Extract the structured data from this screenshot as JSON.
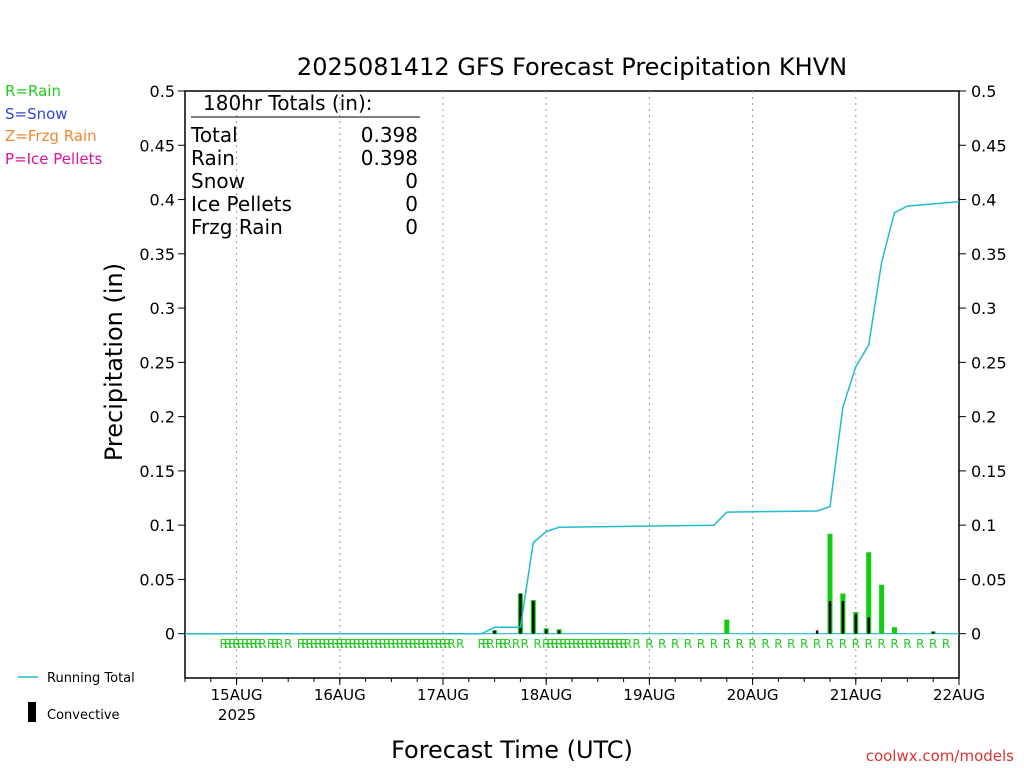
{
  "chart_data": {
    "type": "bar",
    "title": "2025081412 GFS Forecast Precipitation KHVN",
    "xlabel": "Forecast Time (UTC)",
    "ylabel": "Precipitation (in)",
    "ylim": [
      0,
      0.5
    ],
    "xlim": [
      "2025-08-14 12",
      "2025-08-22 00"
    ],
    "y_ticks": [
      "0",
      "0.05",
      "0.1",
      "0.15",
      "0.2",
      "0.25",
      "0.3",
      "0.35",
      "0.4",
      "0.45",
      "0.5"
    ],
    "x_ticks": [
      {
        "t": "2025-08-15 00",
        "label": "15AUG"
      },
      {
        "t": "2025-08-16 00",
        "label": "16AUG"
      },
      {
        "t": "2025-08-17 00",
        "label": "17AUG"
      },
      {
        "t": "2025-08-18 00",
        "label": "18AUG"
      },
      {
        "t": "2025-08-19 00",
        "label": "19AUG"
      },
      {
        "t": "2025-08-20 00",
        "label": "20AUG"
      },
      {
        "t": "2025-08-21 00",
        "label": "21AUG"
      },
      {
        "t": "2025-08-22 00",
        "label": "22AUG"
      }
    ],
    "year_label": "2025",
    "grid": "vertical dotted at day boundaries",
    "legend_placement": "top-left",
    "type_legend": [
      {
        "label": "R=Rain",
        "color": "#22cc22"
      },
      {
        "label": "S=Snow",
        "color": "#3344dd"
      },
      {
        "label": "Z=Frzg Rain",
        "color": "#ee8833"
      },
      {
        "label": "P=Ice Pellets",
        "color": "#dd1199"
      }
    ],
    "series_legend": [
      {
        "label": "Running Total",
        "color": "#22bbcc"
      },
      {
        "label": "Convective",
        "color": "#000000"
      }
    ],
    "totals": {
      "header": "180hr Totals (in):",
      "rows": [
        {
          "label": "Total",
          "value": "0.398"
        },
        {
          "label": "Rain",
          "value": "0.398"
        },
        {
          "label": "Snow",
          "value": "0"
        },
        {
          "label": "Ice Pellets",
          "value": "0"
        },
        {
          "label": "Frzg Rain",
          "value": "0"
        }
      ]
    },
    "precip_bars": [
      {
        "t": "2025-08-17 12",
        "value": 0.003
      },
      {
        "t": "2025-08-17 18",
        "value": 0.037
      },
      {
        "t": "2025-08-17 21",
        "value": 0.031
      },
      {
        "t": "2025-08-18 00",
        "value": 0.005
      },
      {
        "t": "2025-08-18 03",
        "value": 0.004
      },
      {
        "t": "2025-08-19 18",
        "value": 0.013
      },
      {
        "t": "2025-08-20 18",
        "value": 0.092
      },
      {
        "t": "2025-08-20 21",
        "value": 0.037
      },
      {
        "t": "2025-08-21 00",
        "value": 0.02
      },
      {
        "t": "2025-08-21 03",
        "value": 0.075
      },
      {
        "t": "2025-08-21 06",
        "value": 0.045
      },
      {
        "t": "2025-08-21 09",
        "value": 0.006
      },
      {
        "t": "2025-08-21 18",
        "value": 0.002
      }
    ],
    "convective_bars": [
      {
        "t": "2025-08-17 12",
        "value": 0.003
      },
      {
        "t": "2025-08-17 18",
        "value": 0.037
      },
      {
        "t": "2025-08-17 21",
        "value": 0.03
      },
      {
        "t": "2025-08-18 00",
        "value": 0.004
      },
      {
        "t": "2025-08-18 03",
        "value": 0.003
      },
      {
        "t": "2025-08-20 15",
        "value": 0.003
      },
      {
        "t": "2025-08-20 18",
        "value": 0.03
      },
      {
        "t": "2025-08-20 21",
        "value": 0.03
      },
      {
        "t": "2025-08-21 00",
        "value": 0.018
      },
      {
        "t": "2025-08-21 03",
        "value": 0.015
      },
      {
        "t": "2025-08-21 18",
        "value": 0.002
      }
    ],
    "running_total": [
      {
        "t": "2025-08-14 12",
        "value": 0
      },
      {
        "t": "2025-08-17 09",
        "value": 0
      },
      {
        "t": "2025-08-17 12",
        "value": 0.006
      },
      {
        "t": "2025-08-17 18",
        "value": 0.006
      },
      {
        "t": "2025-08-17 21",
        "value": 0.084
      },
      {
        "t": "2025-08-18 00",
        "value": 0.094
      },
      {
        "t": "2025-08-18 03",
        "value": 0.098
      },
      {
        "t": "2025-08-19 15",
        "value": 0.1
      },
      {
        "t": "2025-08-19 18",
        "value": 0.112
      },
      {
        "t": "2025-08-20 15",
        "value": 0.113
      },
      {
        "t": "2025-08-20 18",
        "value": 0.117
      },
      {
        "t": "2025-08-20 21",
        "value": 0.209
      },
      {
        "t": "2025-08-21 00",
        "value": 0.246
      },
      {
        "t": "2025-08-21 03",
        "value": 0.266
      },
      {
        "t": "2025-08-21 06",
        "value": 0.342
      },
      {
        "t": "2025-08-21 09",
        "value": 0.388
      },
      {
        "t": "2025-08-21 12",
        "value": 0.394
      },
      {
        "t": "2025-08-21 18",
        "value": 0.396
      },
      {
        "t": "2025-08-22 00",
        "value": 0.398
      }
    ],
    "type_markers": {
      "symbol": "R",
      "color": "#22cc22",
      "times": [
        "2025-08-14 21",
        "2025-08-14 22",
        "2025-08-14 23",
        "2025-08-15 00",
        "2025-08-15 01",
        "2025-08-15 02",
        "2025-08-15 03",
        "2025-08-15 04",
        "2025-08-15 05",
        "2025-08-15 06",
        "2025-08-15 08",
        "2025-08-15 09",
        "2025-08-15 10",
        "2025-08-15 12",
        "2025-08-15 15",
        "2025-08-15 16",
        "2025-08-15 17",
        "2025-08-15 18",
        "2025-08-15 19",
        "2025-08-15 20",
        "2025-08-15 21",
        "2025-08-15 22",
        "2025-08-15 23",
        "2025-08-16 00",
        "2025-08-16 01",
        "2025-08-16 02",
        "2025-08-16 03",
        "2025-08-16 04",
        "2025-08-16 05",
        "2025-08-16 06",
        "2025-08-16 07",
        "2025-08-16 08",
        "2025-08-16 09",
        "2025-08-16 10",
        "2025-08-16 11",
        "2025-08-16 12",
        "2025-08-16 13",
        "2025-08-16 14",
        "2025-08-16 15",
        "2025-08-16 16",
        "2025-08-16 17",
        "2025-08-16 18",
        "2025-08-16 19",
        "2025-08-16 20",
        "2025-08-16 21",
        "2025-08-16 22",
        "2025-08-16 23",
        "2025-08-17 00",
        "2025-08-17 01",
        "2025-08-17 02",
        "2025-08-17 04",
        "2025-08-17 09",
        "2025-08-17 10",
        "2025-08-17 11",
        "2025-08-17 13",
        "2025-08-17 14",
        "2025-08-17 15",
        "2025-08-17 17",
        "2025-08-17 19",
        "2025-08-17 22",
        "2025-08-18 00",
        "2025-08-18 01",
        "2025-08-18 02",
        "2025-08-18 03",
        "2025-08-18 04",
        "2025-08-18 05",
        "2025-08-18 06",
        "2025-08-18 07",
        "2025-08-18 08",
        "2025-08-18 09",
        "2025-08-18 10",
        "2025-08-18 11",
        "2025-08-18 12",
        "2025-08-18 13",
        "2025-08-18 14",
        "2025-08-18 15",
        "2025-08-18 16",
        "2025-08-18 17",
        "2025-08-18 18",
        "2025-08-18 19",
        "2025-08-18 21",
        "2025-08-19 00",
        "2025-08-19 03",
        "2025-08-19 06",
        "2025-08-19 09",
        "2025-08-19 12",
        "2025-08-19 15",
        "2025-08-19 18",
        "2025-08-19 21",
        "2025-08-20 00",
        "2025-08-20 03",
        "2025-08-20 06",
        "2025-08-20 09",
        "2025-08-20 12",
        "2025-08-20 15",
        "2025-08-20 18",
        "2025-08-20 21",
        "2025-08-21 00",
        "2025-08-21 03",
        "2025-08-21 06",
        "2025-08-21 09",
        "2025-08-21 12",
        "2025-08-21 15",
        "2025-08-21 18",
        "2025-08-21 21"
      ]
    },
    "colors": {
      "rain_bar": "#11cc11",
      "convective_bar": "#000000",
      "running_total": "#22bbcc",
      "axis": "#000000",
      "grid": "#999999"
    }
  },
  "credit": "coolwx.com/models"
}
